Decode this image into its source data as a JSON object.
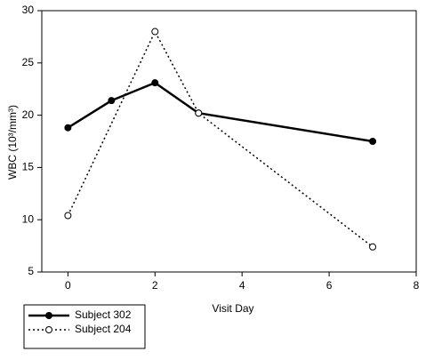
{
  "chart_data": {
    "type": "line",
    "xlabel": "Visit Day",
    "ylabel": "WBC (10³/mm³)",
    "series": [
      {
        "name": "Subject 302",
        "color": "#000000",
        "line_style": "solid",
        "marker_fill": "filled",
        "x": [
          0,
          1,
          2,
          3,
          7
        ],
        "values": [
          18.8,
          21.4,
          23.1,
          20.2,
          17.5
        ]
      },
      {
        "name": "Subject 204",
        "color": "#000000",
        "line_style": "dotted",
        "marker_fill": "open",
        "x": [
          0,
          2,
          3,
          7
        ],
        "values": [
          10.4,
          28.0,
          20.2,
          7.4
        ]
      }
    ],
    "xlim": [
      -0.6,
      8
    ],
    "xticks": [
      0,
      2,
      4,
      6,
      8
    ],
    "ylim": [
      5,
      30
    ],
    "yticks": [
      5,
      10,
      15,
      20,
      25,
      30
    ],
    "grid": false,
    "legend": "bottom-left-outside"
  }
}
